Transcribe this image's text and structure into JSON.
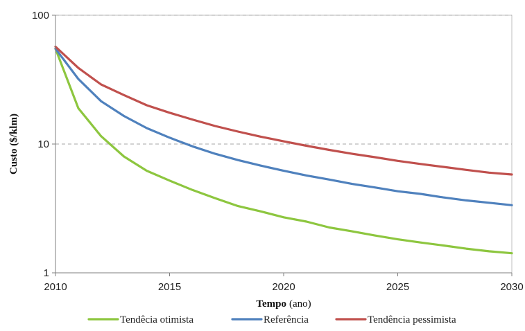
{
  "chart_data": {
    "type": "line",
    "title": "",
    "xlabel": "Tempo",
    "xlabel_unit": "(ano)",
    "ylabel": "Custo ($/klm)",
    "x": [
      2010,
      2011,
      2012,
      2013,
      2014,
      2015,
      2016,
      2017,
      2018,
      2019,
      2020,
      2021,
      2022,
      2023,
      2024,
      2025,
      2026,
      2027,
      2028,
      2029,
      2030
    ],
    "xlim": [
      2010,
      2030
    ],
    "ylim": [
      1,
      100
    ],
    "yscale": "log",
    "x_ticks": [
      "2010",
      "2015",
      "2020",
      "2025",
      "2030"
    ],
    "y_ticks": [
      "1",
      "10",
      "100"
    ],
    "grid": "horizontal dashed at 10 and 100",
    "legend_position": "bottom",
    "series": [
      {
        "name": "Tendêcia otimista",
        "color": "#8dc63f",
        "values": [
          55,
          19,
          11.5,
          8,
          6.2,
          5.2,
          4.4,
          3.8,
          3.3,
          3.0,
          2.7,
          2.5,
          2.25,
          2.1,
          1.95,
          1.82,
          1.72,
          1.63,
          1.54,
          1.47,
          1.42
        ]
      },
      {
        "name": "Referência",
        "color": "#4f81bd",
        "values": [
          55,
          32,
          21.5,
          16.5,
          13.3,
          11.2,
          9.6,
          8.4,
          7.5,
          6.8,
          6.2,
          5.7,
          5.3,
          4.9,
          4.6,
          4.3,
          4.1,
          3.85,
          3.65,
          3.5,
          3.35
        ]
      },
      {
        "name": "Tendência pessimista",
        "color": "#c0504d",
        "values": [
          57,
          39,
          29,
          24,
          20,
          17.5,
          15.5,
          13.8,
          12.5,
          11.4,
          10.5,
          9.7,
          9.0,
          8.4,
          7.9,
          7.4,
          7.0,
          6.65,
          6.3,
          6.0,
          5.8
        ]
      }
    ]
  }
}
